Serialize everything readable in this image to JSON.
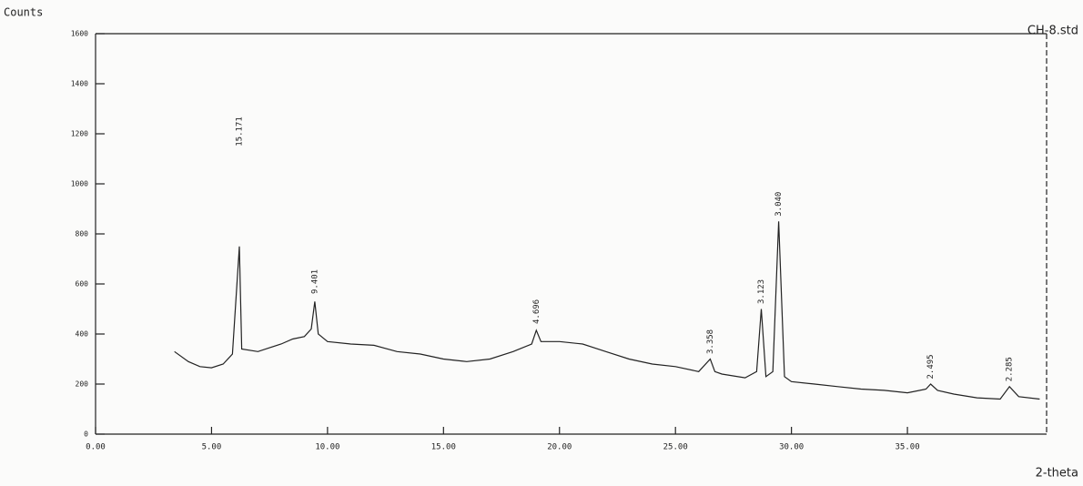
{
  "chart_data": {
    "type": "line",
    "y_label": "Counts",
    "x_label": "2-theta",
    "sample": "CH-8.std",
    "xlim": [
      0,
      41
    ],
    "ylim": [
      0,
      1600
    ],
    "xticks": [
      {
        "value": 0,
        "label": "0.00"
      },
      {
        "value": 5,
        "label": "5.00"
      },
      {
        "value": 10,
        "label": "10.00"
      },
      {
        "value": 15,
        "label": "15.00"
      },
      {
        "value": 20,
        "label": "20.00"
      },
      {
        "value": 25,
        "label": "25.00"
      },
      {
        "value": 30,
        "label": "30.00"
      },
      {
        "value": 35,
        "label": "35.00"
      }
    ],
    "yticks": [
      0,
      200,
      400,
      600,
      800,
      1000,
      1200,
      1400,
      1600
    ],
    "color": "#222222",
    "x": [
      3.4,
      4.0,
      4.5,
      5.0,
      5.5,
      5.9,
      6.2,
      6.3,
      7.0,
      7.5,
      8.0,
      8.5,
      9.0,
      9.3,
      9.45,
      9.6,
      10.0,
      11.0,
      12.0,
      13.0,
      14.0,
      15.0,
      16.0,
      17.0,
      18.0,
      18.8,
      19.0,
      19.2,
      20.0,
      21.0,
      22.0,
      23.0,
      24.0,
      25.0,
      26.0,
      26.5,
      26.7,
      27.0,
      28.0,
      28.5,
      28.7,
      28.9,
      29.2,
      29.45,
      29.7,
      30.0,
      31.0,
      32.0,
      33.0,
      34.0,
      35.0,
      35.8,
      36.0,
      36.3,
      37.0,
      38.0,
      39.0,
      39.4,
      39.8,
      40.7
    ],
    "values": [
      330,
      290,
      270,
      265,
      280,
      320,
      750,
      340,
      330,
      345,
      360,
      380,
      390,
      420,
      530,
      400,
      370,
      360,
      355,
      330,
      320,
      300,
      290,
      300,
      330,
      360,
      415,
      370,
      370,
      360,
      330,
      300,
      280,
      270,
      250,
      300,
      250,
      240,
      225,
      250,
      500,
      230,
      250,
      850,
      230,
      210,
      200,
      190,
      180,
      175,
      165,
      180,
      200,
      175,
      160,
      145,
      140,
      190,
      150,
      140
    ],
    "annotations": [
      {
        "text": "15.171",
        "x": 6.2,
        "y": 1150
      },
      {
        "text": "9.401",
        "x": 9.45,
        "y": 560
      },
      {
        "text": "4.696",
        "x": 19.0,
        "y": 440
      },
      {
        "text": "3.358",
        "x": 26.5,
        "y": 320
      },
      {
        "text": "3.123",
        "x": 28.7,
        "y": 520
      },
      {
        "text": "3.040",
        "x": 29.45,
        "y": 870
      },
      {
        "text": "2.495",
        "x": 36.0,
        "y": 220
      },
      {
        "text": "2.285",
        "x": 39.4,
        "y": 210
      }
    ]
  }
}
